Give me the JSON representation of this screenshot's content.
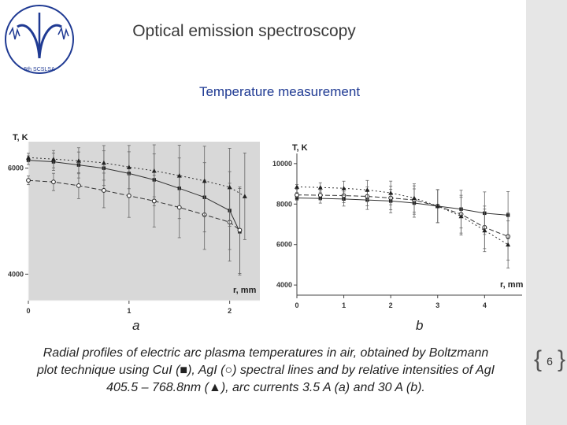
{
  "slide": {
    "title": "Optical emission spectroscopy",
    "subtitle": "Temperature measurement",
    "logo_text": "5th SCSLSA",
    "caption": "Radial profiles of electric arc plasma temperatures in air, obtained by Boltzmann plot technique using CuI (■), AgI (○) spectral lines and by relative intensities of AgI 405.5 – 768.8nm (▲), arc currents 3.5 A (a) and 30 A (b).",
    "page_number": "6",
    "panel_a_label": "a",
    "panel_b_label": "b"
  },
  "chart_data": [
    {
      "type": "line",
      "panel": "a",
      "ylabel": "T, K",
      "xlabel": "r, mm",
      "xlim": [
        0,
        2.3
      ],
      "ylim": [
        3500,
        6500
      ],
      "xticks": [
        0,
        1,
        2
      ],
      "yticks": [
        4000,
        6000
      ],
      "series": [
        {
          "name": "CuI",
          "marker": "square",
          "x": [
            0,
            0.25,
            0.5,
            0.75,
            1.0,
            1.25,
            1.5,
            1.75,
            2.0,
            2.1
          ],
          "y": [
            6150,
            6120,
            6060,
            6000,
            5900,
            5780,
            5620,
            5450,
            5200,
            4800
          ]
        },
        {
          "name": "AgI",
          "marker": "circle",
          "x": [
            0,
            0.25,
            0.5,
            0.75,
            1.0,
            1.25,
            1.5,
            1.75,
            2.0,
            2.1
          ],
          "y": [
            5770,
            5740,
            5670,
            5580,
            5480,
            5380,
            5260,
            5120,
            4980,
            4830
          ]
        },
        {
          "name": "AgI intensity ratio",
          "marker": "triangle",
          "x": [
            0,
            0.25,
            0.5,
            0.75,
            1.0,
            1.25,
            1.5,
            1.75,
            2.0,
            2.15
          ],
          "y": [
            6200,
            6170,
            6140,
            6100,
            6020,
            5950,
            5860,
            5760,
            5640,
            5470
          ]
        }
      ]
    },
    {
      "type": "line",
      "panel": "b",
      "ylabel": "T, K",
      "xlabel": "r, mm",
      "xlim": [
        0,
        4.8
      ],
      "ylim": [
        3500,
        10500
      ],
      "xticks": [
        0,
        1,
        2,
        3,
        4
      ],
      "yticks": [
        4000,
        6000,
        8000,
        10000
      ],
      "series": [
        {
          "name": "CuI",
          "marker": "square",
          "x": [
            0,
            0.5,
            1.0,
            1.5,
            2.0,
            2.5,
            3.0,
            3.5,
            4.0,
            4.5
          ],
          "y": [
            8300,
            8280,
            8250,
            8200,
            8150,
            8050,
            7900,
            7750,
            7550,
            7450
          ]
        },
        {
          "name": "AgI",
          "marker": "circle",
          "x": [
            0,
            0.5,
            1.0,
            1.5,
            2.0,
            2.5,
            3.0,
            3.5,
            4.0,
            4.5
          ],
          "y": [
            8450,
            8440,
            8420,
            8380,
            8300,
            8200,
            7900,
            7500,
            6850,
            6400
          ]
        },
        {
          "name": "AgI intensity ratio",
          "marker": "triangle",
          "x": [
            0,
            0.5,
            1.0,
            1.5,
            2.0,
            2.5,
            3.0,
            3.5,
            4.0,
            4.5
          ],
          "y": [
            8850,
            8820,
            8780,
            8700,
            8550,
            8300,
            7900,
            7400,
            6700,
            6000
          ]
        }
      ]
    }
  ]
}
